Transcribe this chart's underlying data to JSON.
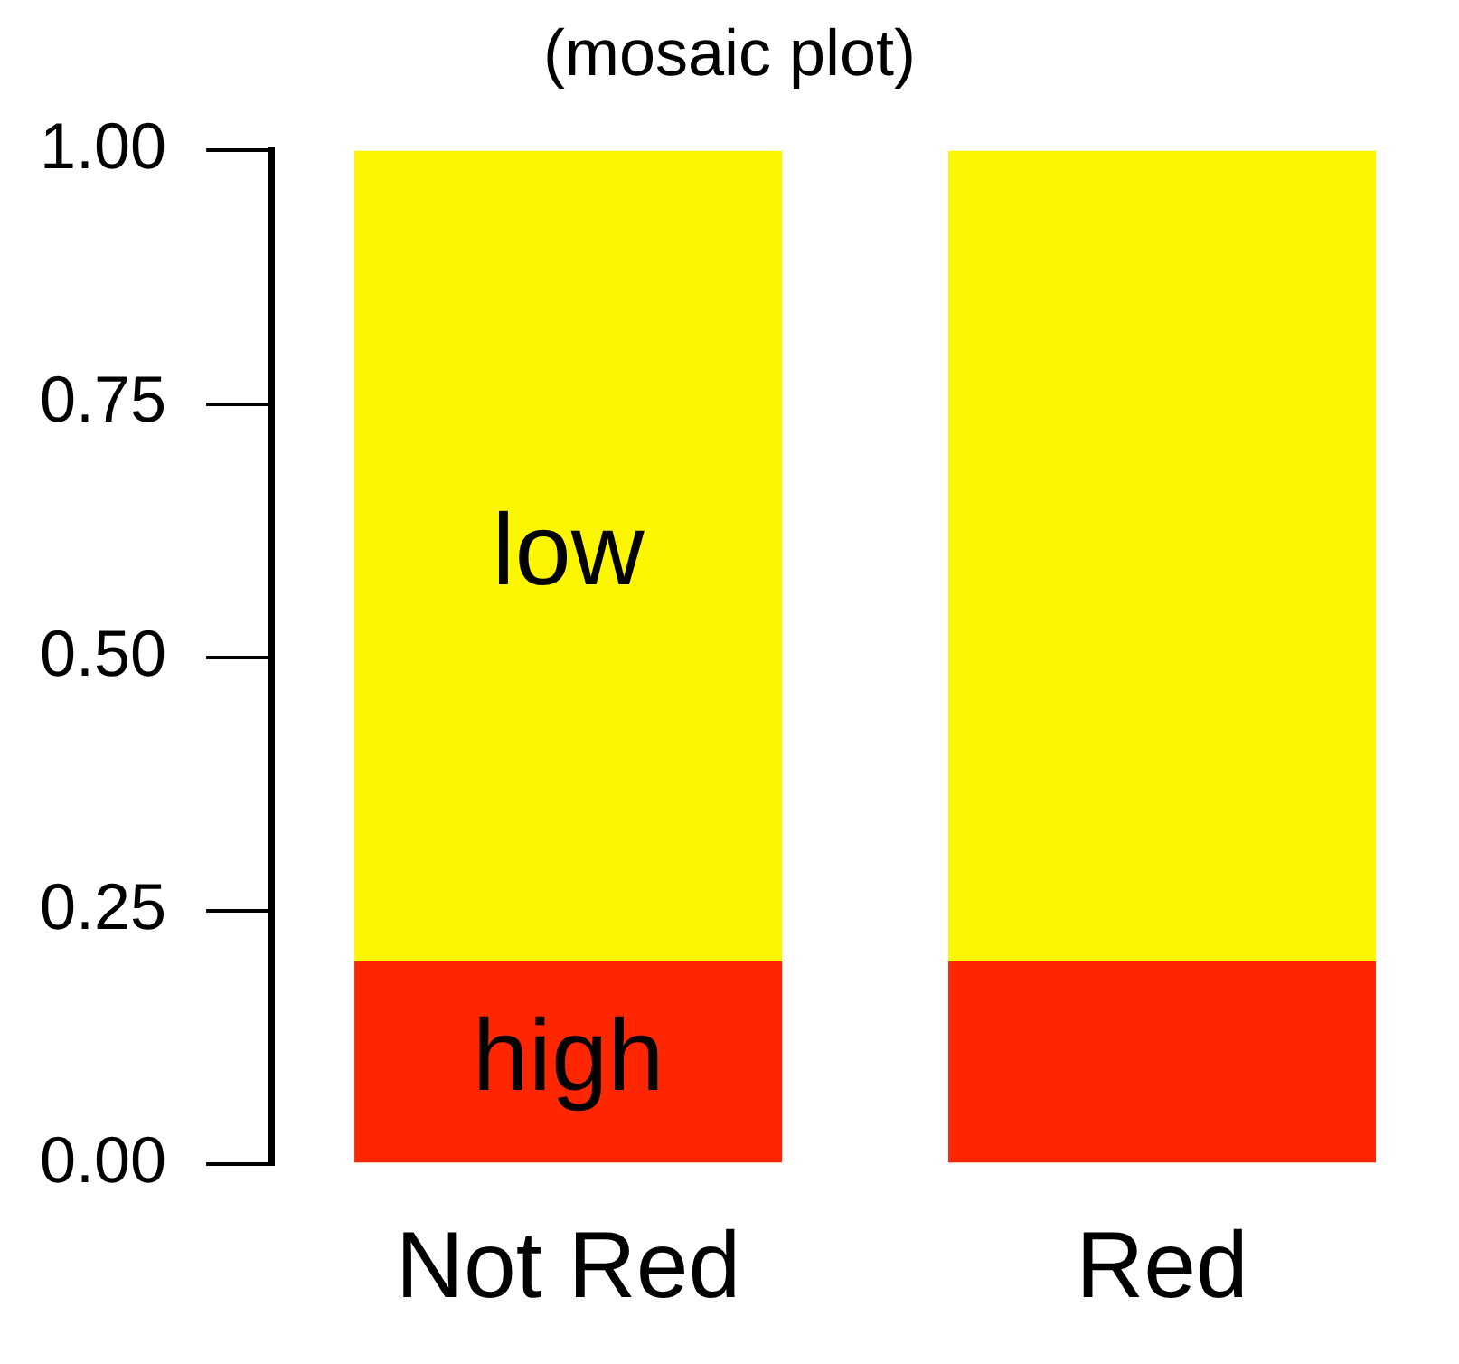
{
  "chart_data": {
    "type": "bar",
    "title": "(mosaic plot)",
    "stacked": true,
    "categories": [
      "Not Red",
      "Red"
    ],
    "series": [
      {
        "name": "high",
        "color": "#ff2600",
        "values": [
          0.2,
          0.2
        ]
      },
      {
        "name": "low",
        "color": "#fcf600",
        "values": [
          0.8,
          0.8
        ]
      }
    ],
    "ylim": [
      0,
      1
    ],
    "yticks": [
      {
        "value": 0,
        "label": "0.00"
      },
      {
        "value": 0.25,
        "label": "0.25"
      },
      {
        "value": 0.5,
        "label": "0.50"
      },
      {
        "value": 0.75,
        "label": "0.75"
      },
      {
        "value": 1,
        "label": "1.00"
      }
    ],
    "grid": false,
    "legend": false
  }
}
